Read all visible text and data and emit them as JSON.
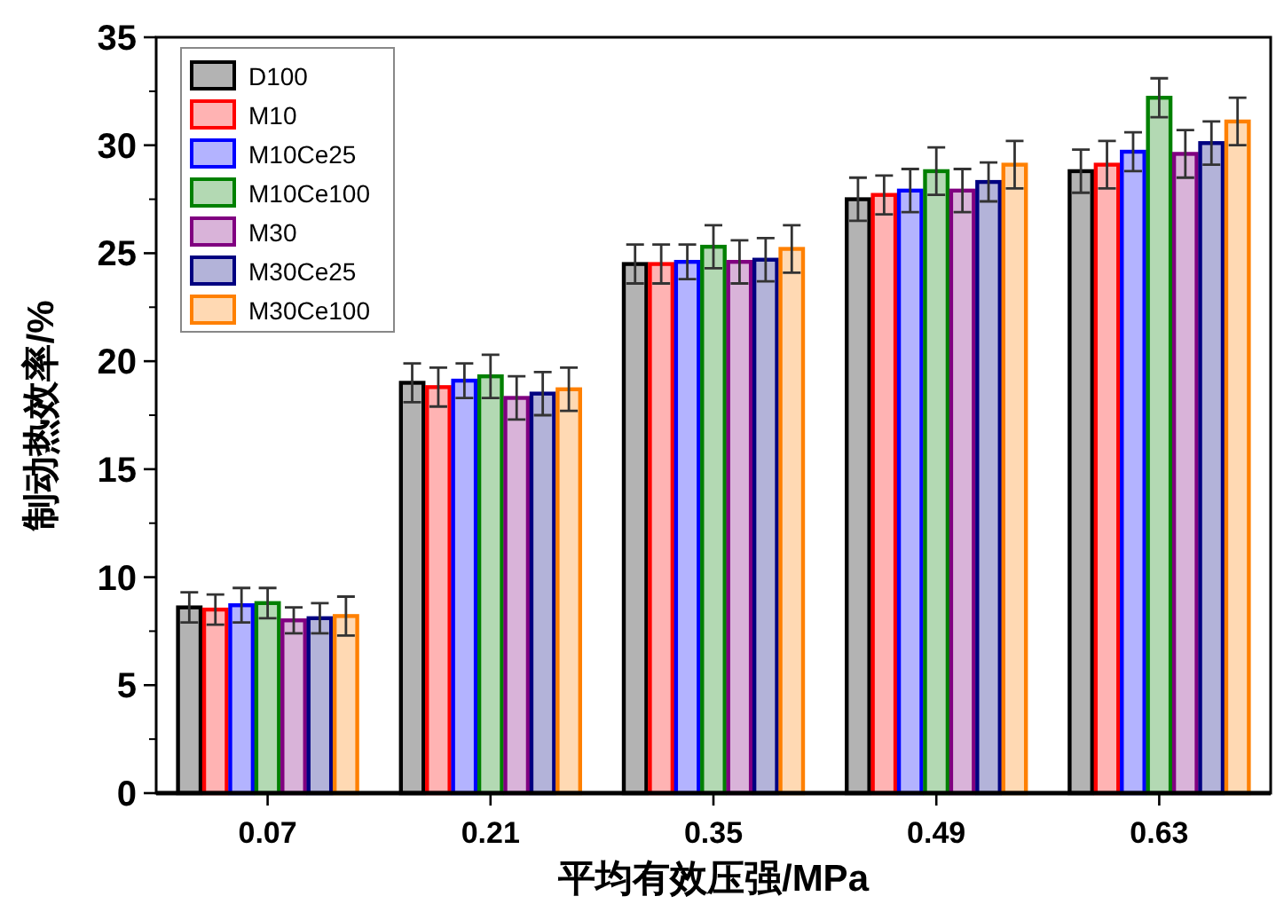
{
  "chart_data": {
    "type": "bar",
    "xlabel": "平均有效压强/MPa",
    "ylabel": "制动热效率/%",
    "categories": [
      "0.07",
      "0.21",
      "0.35",
      "0.49",
      "0.63"
    ],
    "series": [
      {
        "name": "D100",
        "color": "#000000",
        "values": [
          8.6,
          19.0,
          24.5,
          27.5,
          28.8
        ],
        "errors": [
          0.7,
          0.9,
          0.9,
          1.0,
          1.0
        ]
      },
      {
        "name": "M10",
        "color": "#ff0000",
        "values": [
          8.5,
          18.8,
          24.5,
          27.7,
          29.1
        ],
        "errors": [
          0.7,
          0.9,
          0.9,
          0.9,
          1.1
        ]
      },
      {
        "name": "M10Ce25",
        "color": "#0000ff",
        "values": [
          8.7,
          19.1,
          24.6,
          27.9,
          29.7
        ],
        "errors": [
          0.8,
          0.8,
          0.8,
          1.0,
          0.9
        ]
      },
      {
        "name": "M10Ce100",
        "color": "#008000",
        "values": [
          8.8,
          19.3,
          25.3,
          28.8,
          32.2
        ],
        "errors": [
          0.7,
          1.0,
          1.0,
          1.1,
          0.9
        ]
      },
      {
        "name": "M30",
        "color": "#800080",
        "values": [
          8.0,
          18.3,
          24.6,
          27.9,
          29.6
        ],
        "errors": [
          0.6,
          1.0,
          1.0,
          1.0,
          1.1
        ]
      },
      {
        "name": "M30Ce25",
        "color": "#000080",
        "values": [
          8.1,
          18.5,
          24.7,
          28.3,
          30.1
        ],
        "errors": [
          0.7,
          1.0,
          1.0,
          0.9,
          1.0
        ]
      },
      {
        "name": "M30Ce100",
        "color": "#ff8000",
        "values": [
          8.2,
          18.7,
          25.2,
          29.1,
          31.1
        ],
        "errors": [
          0.9,
          1.0,
          1.1,
          1.1,
          1.1
        ]
      }
    ],
    "ylim": [
      0,
      35
    ],
    "yticks": [
      0,
      5,
      10,
      15,
      20,
      25,
      30,
      35
    ],
    "grid": false,
    "legend": "top left"
  }
}
